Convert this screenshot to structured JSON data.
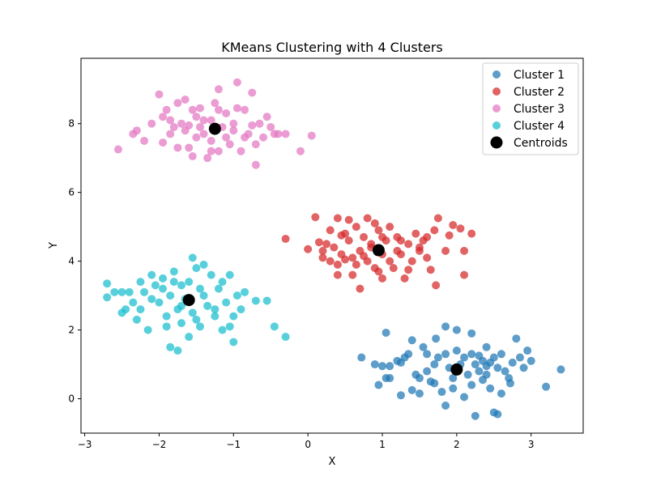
{
  "chart_data": {
    "type": "scatter",
    "title": "KMeans Clustering with 4 Clusters",
    "xlabel": "X",
    "ylabel": "Y",
    "xlim": [
      -3.05,
      3.7
    ],
    "ylim": [
      -1.0,
      9.9
    ],
    "x_ticks": [
      -3,
      -2,
      -1,
      0,
      1,
      2,
      3
    ],
    "y_ticks": [
      0,
      2,
      4,
      6,
      8
    ],
    "grid": false,
    "legend_position": "top-right",
    "series": [
      {
        "name": "Cluster 1",
        "color": "#1f77b4",
        "points": [
          [
            0.72,
            1.2
          ],
          [
            0.9,
            1.0
          ],
          [
            1.0,
            0.95
          ],
          [
            1.05,
            1.92
          ],
          [
            1.1,
            0.95
          ],
          [
            1.2,
            1.1
          ],
          [
            1.25,
            1.05
          ],
          [
            1.3,
            1.2
          ],
          [
            1.35,
            1.3
          ],
          [
            1.4,
            1.7
          ],
          [
            1.45,
            0.7
          ],
          [
            1.5,
            0.6
          ],
          [
            1.55,
            1.5
          ],
          [
            1.6,
            1.3
          ],
          [
            1.6,
            0.8
          ],
          [
            1.65,
            0.5
          ],
          [
            1.7,
            1.0
          ],
          [
            1.72,
            1.75
          ],
          [
            1.75,
            1.2
          ],
          [
            1.8,
            0.2
          ],
          [
            1.85,
            2.1
          ],
          [
            1.85,
            1.3
          ],
          [
            1.9,
            0.9
          ],
          [
            1.95,
            0.6
          ],
          [
            2.0,
            1.4
          ],
          [
            2.0,
            2.0
          ],
          [
            2.05,
            1.0
          ],
          [
            2.1,
            1.2
          ],
          [
            2.15,
            0.7
          ],
          [
            2.2,
            1.3
          ],
          [
            2.2,
            0.4
          ],
          [
            2.25,
            1.0
          ],
          [
            2.25,
            -0.5
          ],
          [
            2.3,
            0.8
          ],
          [
            2.35,
            1.1
          ],
          [
            2.4,
            0.7
          ],
          [
            2.4,
            1.5
          ],
          [
            2.45,
            0.3
          ],
          [
            2.5,
            -0.4
          ],
          [
            2.55,
            -0.45
          ],
          [
            2.5,
            1.2
          ],
          [
            2.55,
            0.9
          ],
          [
            2.6,
            1.3
          ],
          [
            2.65,
            0.8
          ],
          [
            2.7,
            0.6
          ],
          [
            2.72,
            0.45
          ],
          [
            2.8,
            1.75
          ],
          [
            2.85,
            1.2
          ],
          [
            2.9,
            0.9
          ],
          [
            3.0,
            1.1
          ],
          [
            2.95,
            1.4
          ],
          [
            3.2,
            0.35
          ],
          [
            3.4,
            0.85
          ],
          [
            0.95,
            0.4
          ],
          [
            1.1,
            0.6
          ],
          [
            2.2,
            1.9
          ],
          [
            1.25,
            0.1
          ],
          [
            1.5,
            0.15
          ],
          [
            1.85,
            -0.2
          ],
          [
            2.1,
            0.05
          ],
          [
            2.4,
            0.95
          ],
          [
            2.45,
            1.05
          ],
          [
            2.35,
            0.55
          ],
          [
            1.95,
            0.3
          ],
          [
            1.7,
            0.45
          ],
          [
            1.4,
            0.25
          ],
          [
            1.05,
            0.6
          ],
          [
            2.6,
            0.15
          ],
          [
            2.75,
            1.05
          ],
          [
            2.3,
            1.25
          ]
        ]
      },
      {
        "name": "Cluster 2",
        "color": "#d62728",
        "points": [
          [
            -0.3,
            4.65
          ],
          [
            0.1,
            5.28
          ],
          [
            0.15,
            4.55
          ],
          [
            0.2,
            4.3
          ],
          [
            0.2,
            4.1
          ],
          [
            0.25,
            4.5
          ],
          [
            0.3,
            4.9
          ],
          [
            0.3,
            4.0
          ],
          [
            0.35,
            4.4
          ],
          [
            0.4,
            3.9
          ],
          [
            0.4,
            5.25
          ],
          [
            0.45,
            4.2
          ],
          [
            0.5,
            4.8
          ],
          [
            0.55,
            4.6
          ],
          [
            0.55,
            5.2
          ],
          [
            0.6,
            3.6
          ],
          [
            0.6,
            4.1
          ],
          [
            0.65,
            5.0
          ],
          [
            0.7,
            4.3
          ],
          [
            0.7,
            3.2
          ],
          [
            0.75,
            4.7
          ],
          [
            0.8,
            4.0
          ],
          [
            0.8,
            5.25
          ],
          [
            0.85,
            4.5
          ],
          [
            0.9,
            3.8
          ],
          [
            0.9,
            5.1
          ],
          [
            0.95,
            4.9
          ],
          [
            1.0,
            4.2
          ],
          [
            1.0,
            3.5
          ],
          [
            1.05,
            4.6
          ],
          [
            1.1,
            4.0
          ],
          [
            1.1,
            5.0
          ],
          [
            1.15,
            3.8
          ],
          [
            1.2,
            4.7
          ],
          [
            1.25,
            4.2
          ],
          [
            1.3,
            3.5
          ],
          [
            1.35,
            4.5
          ],
          [
            1.4,
            4.0
          ],
          [
            1.45,
            4.8
          ],
          [
            1.5,
            4.3
          ],
          [
            1.55,
            4.6
          ],
          [
            1.6,
            4.1
          ],
          [
            1.65,
            3.75
          ],
          [
            1.7,
            4.9
          ],
          [
            1.72,
            3.3
          ],
          [
            1.75,
            5.25
          ],
          [
            1.85,
            4.3
          ],
          [
            1.9,
            4.75
          ],
          [
            1.95,
            5.05
          ],
          [
            2.05,
            4.95
          ],
          [
            2.1,
            4.3
          ],
          [
            2.1,
            3.6
          ],
          [
            2.2,
            4.8
          ],
          [
            0.0,
            4.35
          ],
          [
            0.45,
            4.75
          ],
          [
            0.65,
            3.9
          ],
          [
            0.85,
            4.4
          ],
          [
            1.2,
            4.3
          ],
          [
            1.35,
            3.75
          ],
          [
            0.5,
            4.05
          ],
          [
            1.0,
            4.7
          ],
          [
            1.5,
            4.4
          ],
          [
            0.75,
            4.15
          ],
          [
            1.25,
            4.6
          ],
          [
            0.95,
            3.7
          ],
          [
            1.6,
            4.7
          ],
          [
            0.4,
            3.6
          ]
        ]
      },
      {
        "name": "Cluster 3",
        "color": "#e377c2",
        "points": [
          [
            -2.55,
            7.25
          ],
          [
            -2.35,
            7.7
          ],
          [
            -2.3,
            7.8
          ],
          [
            -2.2,
            7.5
          ],
          [
            -2.1,
            8.0
          ],
          [
            -2.0,
            8.85
          ],
          [
            -1.95,
            8.2
          ],
          [
            -1.9,
            8.4
          ],
          [
            -1.85,
            7.7
          ],
          [
            -1.8,
            7.9
          ],
          [
            -1.75,
            8.6
          ],
          [
            -1.7,
            8.0
          ],
          [
            -1.65,
            7.8
          ],
          [
            -1.6,
            7.3
          ],
          [
            -1.55,
            8.4
          ],
          [
            -1.5,
            7.6
          ],
          [
            -1.45,
            7.9
          ],
          [
            -1.4,
            8.1
          ],
          [
            -1.35,
            7.0
          ],
          [
            -1.3,
            7.5
          ],
          [
            -1.25,
            8.6
          ],
          [
            -1.2,
            9.0
          ],
          [
            -1.2,
            7.2
          ],
          [
            -1.15,
            7.9
          ],
          [
            -1.1,
            8.3
          ],
          [
            -1.05,
            7.4
          ],
          [
            -1.0,
            8.0
          ],
          [
            -0.95,
            9.2
          ],
          [
            -0.9,
            7.2
          ],
          [
            -0.85,
            8.4
          ],
          [
            -0.8,
            7.7
          ],
          [
            -0.75,
            8.9
          ],
          [
            -0.7,
            7.4
          ],
          [
            -0.7,
            6.8
          ],
          [
            -0.65,
            8.0
          ],
          [
            -0.6,
            7.6
          ],
          [
            -0.55,
            8.2
          ],
          [
            -0.5,
            7.9
          ],
          [
            -0.45,
            7.7
          ],
          [
            -0.4,
            7.7
          ],
          [
            -0.3,
            7.7
          ],
          [
            -0.1,
            7.2
          ],
          [
            0.05,
            7.65
          ],
          [
            -1.65,
            8.7
          ],
          [
            -1.85,
            8.1
          ],
          [
            -1.5,
            8.2
          ],
          [
            -1.3,
            7.2
          ],
          [
            -1.0,
            7.8
          ],
          [
            -0.85,
            7.6
          ],
          [
            -1.4,
            7.7
          ],
          [
            -1.1,
            7.6
          ],
          [
            -1.75,
            7.3
          ],
          [
            -1.95,
            7.45
          ],
          [
            -1.55,
            7.05
          ],
          [
            -1.2,
            8.4
          ],
          [
            -0.95,
            8.45
          ],
          [
            -1.6,
            7.95
          ],
          [
            -1.3,
            8.1
          ],
          [
            -0.75,
            7.95
          ],
          [
            -1.45,
            8.45
          ]
        ]
      },
      {
        "name": "Cluster 4",
        "color": "#17becf",
        "points": [
          [
            -2.7,
            3.35
          ],
          [
            -2.7,
            2.95
          ],
          [
            -2.6,
            3.1
          ],
          [
            -2.5,
            3.1
          ],
          [
            -2.45,
            2.6
          ],
          [
            -2.4,
            3.1
          ],
          [
            -2.3,
            2.3
          ],
          [
            -2.25,
            2.6
          ],
          [
            -2.2,
            3.1
          ],
          [
            -2.15,
            2.0
          ],
          [
            -2.1,
            3.6
          ],
          [
            -2.05,
            3.3
          ],
          [
            -2.0,
            2.8
          ],
          [
            -1.95,
            3.5
          ],
          [
            -1.9,
            2.4
          ],
          [
            -1.85,
            3.0
          ],
          [
            -1.8,
            3.7
          ],
          [
            -1.75,
            2.6
          ],
          [
            -1.7,
            2.2
          ],
          [
            -1.7,
            3.3
          ],
          [
            -1.65,
            2.9
          ],
          [
            -1.6,
            3.4
          ],
          [
            -1.55,
            2.5
          ],
          [
            -1.5,
            3.8
          ],
          [
            -1.45,
            2.1
          ],
          [
            -1.4,
            3.0
          ],
          [
            -1.35,
            2.7
          ],
          [
            -1.3,
            3.6
          ],
          [
            -1.25,
            2.4
          ],
          [
            -1.2,
            3.2
          ],
          [
            -1.15,
            2.0
          ],
          [
            -1.1,
            2.8
          ],
          [
            -1.05,
            3.6
          ],
          [
            -1.0,
            2.4
          ],
          [
            -0.95,
            3.0
          ],
          [
            -0.9,
            2.6
          ],
          [
            -0.85,
            3.1
          ],
          [
            -0.7,
            2.85
          ],
          [
            -0.55,
            2.85
          ],
          [
            -0.45,
            2.1
          ],
          [
            -0.3,
            1.8
          ],
          [
            -1.85,
            1.5
          ],
          [
            -1.75,
            1.4
          ],
          [
            -1.55,
            4.1
          ],
          [
            -1.4,
            3.9
          ],
          [
            -2.5,
            2.5
          ],
          [
            -2.35,
            2.8
          ],
          [
            -1.9,
            2.1
          ],
          [
            -1.6,
            1.8
          ],
          [
            -1.25,
            2.6
          ],
          [
            -1.0,
            1.65
          ],
          [
            -2.1,
            2.9
          ],
          [
            -1.7,
            2.7
          ],
          [
            -1.45,
            3.2
          ],
          [
            -1.15,
            3.4
          ],
          [
            -1.95,
            3.2
          ],
          [
            -1.5,
            2.3
          ],
          [
            -1.8,
            3.4
          ],
          [
            -1.05,
            2.1
          ],
          [
            -2.25,
            3.4
          ]
        ]
      },
      {
        "name": "Centroids",
        "color": "#000000",
        "points": [
          [
            2.0,
            0.85
          ],
          [
            0.95,
            4.32
          ],
          [
            -1.25,
            7.85
          ],
          [
            -1.6,
            2.87
          ]
        ]
      }
    ]
  }
}
